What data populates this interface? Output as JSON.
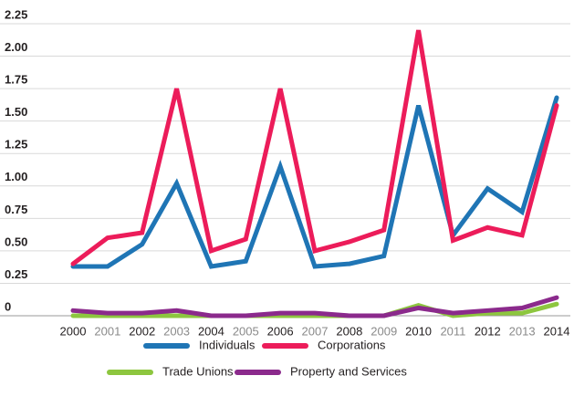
{
  "chart_data": {
    "type": "line",
    "categories": [
      "2000",
      "2001",
      "2002",
      "2003",
      "2004",
      "2005",
      "2006",
      "2007",
      "2008",
      "2009",
      "2010",
      "2011",
      "2012",
      "2013",
      "2014"
    ],
    "series": [
      {
        "name": "Individuals",
        "color": "#1f75b5",
        "values": [
          0.38,
          0.38,
          0.55,
          1.02,
          0.38,
          0.42,
          1.15,
          0.38,
          0.4,
          0.46,
          1.62,
          0.62,
          0.98,
          0.8,
          1.68
        ]
      },
      {
        "name": "Corporations",
        "color": "#ec1c5a",
        "values": [
          0.4,
          0.6,
          0.64,
          1.75,
          0.5,
          0.59,
          1.75,
          0.5,
          0.57,
          0.66,
          2.2,
          0.58,
          0.68,
          0.62,
          1.62
        ]
      },
      {
        "name": "Trade Unions",
        "color": "#8dc63f",
        "values": [
          0,
          0,
          0,
          0,
          0,
          0,
          0,
          0,
          0,
          0,
          0.08,
          0,
          0.02,
          0.02,
          0.09
        ]
      },
      {
        "name": "Property and Services",
        "color": "#8b2a8c",
        "values": [
          0.04,
          0.02,
          0.02,
          0.04,
          0,
          0,
          0.02,
          0.02,
          0,
          0,
          0.06,
          0.02,
          0.04,
          0.06,
          0.14
        ]
      }
    ],
    "ylim": [
      0,
      2.25
    ],
    "yticks": [
      0,
      0.25,
      {
        "value": 0.5,
        "label": "0.50"
      },
      0.75,
      {
        "value": 1,
        "label": "1.00"
      },
      1.25,
      {
        "value": 1.5,
        "label": "1.50"
      },
      1.75,
      {
        "value": 2,
        "label": "2.00"
      },
      2.25
    ],
    "grid": true,
    "legend": "bottom"
  }
}
